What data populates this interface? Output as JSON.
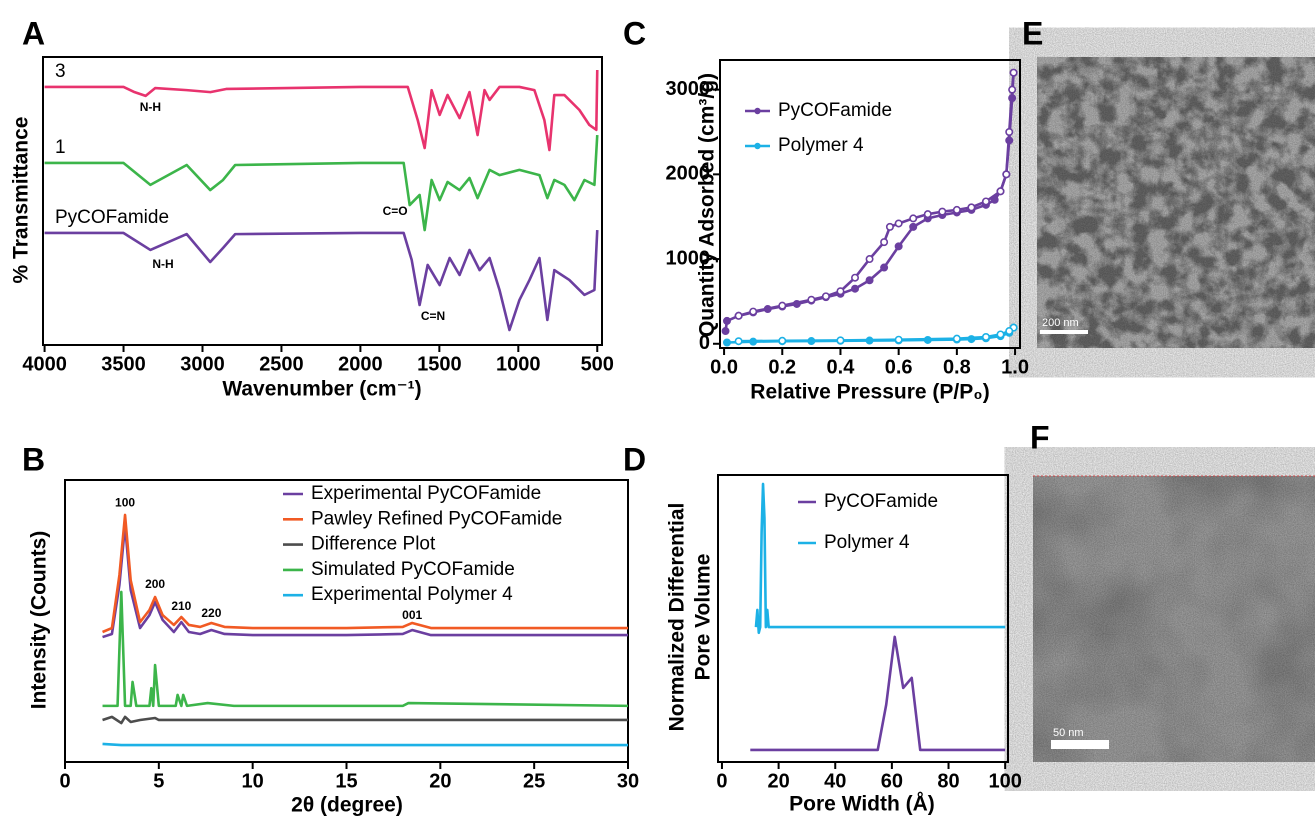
{
  "chart_data": [
    {
      "type": "line",
      "panel": "A",
      "xlabel": "Wavenumber (cm⁻¹)",
      "ylabel": "% Transmittance",
      "xlim": [
        4010,
        470
      ],
      "ylim": [
        0,
        100
      ],
      "xticks": [
        4000,
        3500,
        3000,
        2500,
        2000,
        1500,
        1000,
        500
      ],
      "legend": false,
      "series": [
        {
          "name": "3",
          "color": "#e8336e",
          "x": [
            4000,
            3500,
            3430,
            3360,
            3300,
            3100,
            2950,
            2850,
            2000,
            1700,
            1637,
            1593,
            1549,
            1498,
            1448,
            1372,
            1309,
            1258,
            1214,
            1182,
            1119,
            993,
            898,
            835,
            803,
            772,
            708,
            613,
            550,
            506,
            500
          ],
          "values": [
            89.6,
            89.6,
            87.8,
            86.5,
            89.2,
            88.5,
            87.8,
            88.9,
            89.6,
            89.6,
            78.1,
            68.4,
            88.5,
            79.9,
            86.8,
            78.8,
            87.8,
            72.9,
            88.5,
            85.1,
            89.6,
            89.6,
            88.5,
            78.1,
            67.7,
            86.8,
            86.8,
            81.6,
            76.4,
            74.7,
            95.5
          ]
        },
        {
          "name": "1",
          "color": "#3cb54a",
          "x": [
            4000,
            3500,
            3330,
            3100,
            2951,
            2870,
            2793,
            2000,
            1726,
            1688,
            1625,
            1593,
            1549,
            1498,
            1448,
            1372,
            1309,
            1258,
            1182,
            1119,
            993,
            866,
            816,
            772,
            708,
            645,
            581,
            518,
            500
          ],
          "values": [
            63.2,
            63.2,
            55.6,
            62.5,
            53.8,
            57.3,
            62.5,
            63.2,
            63.2,
            48.6,
            52.1,
            39.9,
            57.3,
            50.3,
            56.6,
            53.8,
            58.0,
            51.0,
            60.8,
            59.0,
            60.8,
            59.0,
            51.0,
            57.3,
            55.6,
            50.3,
            57.3,
            55.6,
            72.9
          ]
        },
        {
          "name": "PyCOFamide",
          "color": "#6b3fa0",
          "x": [
            4000,
            3500,
            3330,
            3100,
            2951,
            2870,
            2793,
            2000,
            1726,
            1675,
            1625,
            1574,
            1498,
            1435,
            1372,
            1309,
            1245,
            1182,
            1119,
            1056,
            993,
            929,
            866,
            816,
            772,
            677,
            581,
            518,
            500
          ],
          "values": [
            38.9,
            38.9,
            33.0,
            38.5,
            28.8,
            33.7,
            38.5,
            38.9,
            38.9,
            29.5,
            13.9,
            27.8,
            20.8,
            30.2,
            24.3,
            33.0,
            26.0,
            30.2,
            19.1,
            5.2,
            15.6,
            22.6,
            30.2,
            8.7,
            26.0,
            22.6,
            17.4,
            19.1,
            39.9
          ]
        }
      ],
      "annotations": [
        {
          "text": "N-H",
          "x": 3330,
          "y": 82.3
        },
        {
          "text": "C=O",
          "x": 1780,
          "y": 46.2
        },
        {
          "text": "N-H",
          "x": 3250,
          "y": 27.8
        },
        {
          "text": "C=N",
          "x": 1540,
          "y": 9.7
        }
      ]
    },
    {
      "type": "line",
      "panel": "B",
      "xlabel": "2θ (degree)",
      "ylabel": "Intensity (Counts)",
      "xlim": [
        0,
        30
      ],
      "ylim": [
        0,
        100
      ],
      "xticks": [
        0,
        5,
        10,
        15,
        20,
        25,
        30
      ],
      "legend": "upper right",
      "series": [
        {
          "name": "Experimental PyCOFamide",
          "color": "#6b3fa0",
          "x": [
            2,
            2.5,
            2.9,
            3.2,
            3.5,
            4.0,
            4.5,
            4.8,
            5.2,
            5.8,
            6.2,
            6.6,
            7.2,
            7.8,
            8.5,
            10,
            15,
            18,
            18.5,
            19.5,
            25,
            30
          ],
          "values": [
            44.3,
            45.4,
            62.8,
            84.0,
            61.0,
            47.5,
            52.1,
            56.7,
            50.4,
            46.1,
            49.6,
            46.1,
            45.4,
            46.8,
            45.4,
            45.0,
            45.0,
            45.4,
            46.8,
            45.0,
            45.0,
            45.0
          ]
        },
        {
          "name": "Pawley Refined PyCOFamide",
          "color": "#f15a24",
          "x": [
            2,
            2.5,
            2.9,
            3.2,
            3.5,
            4.0,
            4.5,
            4.8,
            5.2,
            5.8,
            6.2,
            6.6,
            7.2,
            7.8,
            8.5,
            10,
            15,
            18,
            18.5,
            19.5,
            25,
            30
          ],
          "values": [
            46.1,
            47.5,
            66.3,
            87.6,
            64.5,
            49.6,
            53.9,
            58.5,
            52.1,
            48.6,
            51.4,
            48.6,
            47.9,
            49.3,
            47.9,
            47.5,
            47.5,
            47.9,
            49.3,
            47.5,
            47.5,
            47.5
          ]
        },
        {
          "name": "Difference Plot",
          "color": "#4d4d4d",
          "x": [
            2,
            2.5,
            3.0,
            3.2,
            3.5,
            4,
            4.8,
            5,
            30
          ],
          "values": [
            14.9,
            16.0,
            13.8,
            16.0,
            14.2,
            14.9,
            15.6,
            14.9,
            14.9
          ]
        },
        {
          "name": "Simulated PyCOFamide",
          "color": "#3cb54a",
          "x": [
            2,
            2.8,
            3.0,
            3.2,
            3.5,
            3.6,
            3.8,
            4.5,
            4.6,
            4.7,
            4.8,
            5.0,
            5.9,
            6.0,
            6.2,
            6.3,
            6.5,
            7.6,
            9,
            18,
            18.3,
            30
          ],
          "values": [
            19.9,
            19.9,
            60.3,
            19.9,
            19.9,
            28.4,
            19.9,
            19.9,
            26.2,
            19.9,
            34.4,
            19.9,
            19.9,
            23.8,
            19.9,
            23.8,
            19.9,
            20.9,
            19.9,
            19.9,
            20.9,
            19.9
          ]
        },
        {
          "name": "Experimental Polymer 4",
          "color": "#1cb1e6",
          "x": [
            2,
            3,
            30
          ],
          "values": [
            6.4,
            6.0,
            6.0
          ]
        }
      ],
      "annotations": [
        {
          "text": "100",
          "x": 3.2,
          "y": 91.8
        },
        {
          "text": "200",
          "x": 4.8,
          "y": 62.8
        },
        {
          "text": "210",
          "x": 6.2,
          "y": 55.0
        },
        {
          "text": "220",
          "x": 7.8,
          "y": 52.5
        },
        {
          "text": "001",
          "x": 18.5,
          "y": 51.8
        }
      ]
    },
    {
      "type": "line",
      "panel": "C",
      "xlabel": "Relative Pressure (P/P₀)",
      "ylabel": "Quantity Adsorbed (cm³/g)",
      "xlim": [
        -0.014,
        1.017
      ],
      "ylim": [
        -50,
        3350
      ],
      "xticks": [
        {
          "value": 0,
          "label": "0.0"
        },
        0.2,
        0.4,
        0.6,
        0.8,
        {
          "value": 1,
          "label": "1.0"
        }
      ],
      "yticks": [
        0,
        1000,
        2000,
        3000
      ],
      "legend": "upper left",
      "series": [
        {
          "name": "PyCOFamide",
          "color": "#6b3fa0",
          "marker": "filled",
          "x": [
            0.005,
            0.01,
            0.05,
            0.1,
            0.15,
            0.2,
            0.25,
            0.3,
            0.35,
            0.4,
            0.45,
            0.5,
            0.55,
            0.6,
            0.65,
            0.7,
            0.75,
            0.8,
            0.85,
            0.9,
            0.93,
            0.95,
            0.97,
            0.98,
            0.99,
            0.995
          ],
          "values": [
            150,
            270,
            330,
            370,
            410,
            440,
            470,
            510,
            550,
            590,
            650,
            750,
            900,
            1150,
            1380,
            1480,
            1520,
            1550,
            1580,
            1640,
            1700,
            1800,
            2000,
            2400,
            2900,
            3200
          ]
        },
        {
          "name": "PyCOFamide",
          "color": "#6b3fa0",
          "marker": "open",
          "x": [
            0.995,
            0.99,
            0.98,
            0.97,
            0.95,
            0.9,
            0.85,
            0.8,
            0.75,
            0.7,
            0.65,
            0.6,
            0.57,
            0.55,
            0.5,
            0.45,
            0.4,
            0.35,
            0.3,
            0.2,
            0.1,
            0.05
          ],
          "values": [
            3200,
            3000,
            2500,
            2000,
            1800,
            1680,
            1610,
            1580,
            1560,
            1530,
            1480,
            1420,
            1380,
            1200,
            1000,
            780,
            620,
            560,
            520,
            450,
            380,
            330
          ]
        },
        {
          "name": "Polymer 4",
          "color": "#1cb1e6",
          "marker": "filled",
          "x": [
            0.01,
            0.1,
            0.2,
            0.3,
            0.4,
            0.5,
            0.6,
            0.7,
            0.8,
            0.85,
            0.9,
            0.95,
            0.98,
            0.995
          ],
          "values": [
            15,
            25,
            30,
            32,
            35,
            38,
            40,
            45,
            50,
            55,
            65,
            90,
            130,
            190
          ]
        },
        {
          "name": "Polymer 4",
          "color": "#1cb1e6",
          "marker": "open",
          "x": [
            0.995,
            0.98,
            0.95,
            0.9,
            0.8,
            0.6,
            0.4,
            0.2,
            0.05
          ],
          "values": [
            190,
            150,
            110,
            80,
            60,
            48,
            40,
            35,
            30
          ]
        }
      ]
    },
    {
      "type": "line",
      "panel": "D",
      "xlabel": "Pore Width (Å)",
      "ylabel": [
        "Normalized Differential",
        "Pore Volume"
      ],
      "xlim": [
        -1.4,
        101
      ],
      "ylim": [
        0,
        100
      ],
      "xticks": [
        0,
        20,
        40,
        60,
        80,
        100
      ],
      "legend": "upper right",
      "series": [
        {
          "name": "PyCOFamide",
          "color": "#6b3fa0",
          "x": [
            10,
            55,
            58,
            61,
            64,
            67,
            70,
            100
          ],
          "values": [
            4.2,
            4.2,
            20,
            43.6,
            25.8,
            29.3,
            4.2,
            4.2
          ]
        },
        {
          "name": "Polymer 4",
          "color": "#1cb1e6",
          "x": [
            12,
            12.5,
            13,
            13.5,
            14,
            14.5,
            15,
            15.5,
            16,
            16.5,
            17,
            100
          ],
          "values": [
            47,
            53,
            45,
            47,
            80,
            96.9,
            85,
            47,
            53,
            47,
            47,
            47
          ]
        }
      ]
    }
  ],
  "images": [
    {
      "panel": "E",
      "scale_bar": "200 nm"
    },
    {
      "panel": "F",
      "scale_bar": "50 nm"
    }
  ]
}
